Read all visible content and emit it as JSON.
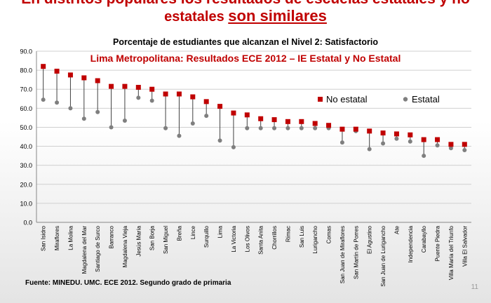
{
  "headline": {
    "line1": "En distritos populares los resultados de escuelas estatales y no",
    "line2_prefix": "estatales ",
    "line2_emph": "son similares"
  },
  "footer": {
    "source": "Fuente: MINEDU. UMC. ECE 2012. Segundo grado de primaria",
    "page_number": "11"
  },
  "colors": {
    "no_estatal": "#c00000",
    "estatal": "#7f7f7f",
    "title2": "#c00000"
  },
  "chart_data": {
    "type": "scatter",
    "title": "Porcentaje de estudiantes que alcanzan el Nivel 2: Satisfactorio",
    "subtitle": "Lima Metropolitana: Resultados ECE 2012 – IE Estatal y No Estatal",
    "xlabel": "",
    "ylabel": "",
    "ylim": [
      0,
      90
    ],
    "yticks": [
      "0.0",
      "10.0",
      "20.0",
      "30.0",
      "40.0",
      "50.0",
      "60.0",
      "70.0",
      "80.0",
      "90.0"
    ],
    "grid": true,
    "legend_position": "right",
    "categories": [
      "San Isidro",
      "Miraflores",
      "La Molina",
      "Magdalena del Mar",
      "Santiago de Surco",
      "Barranco",
      "Magdalena Vieja",
      "Jesús María",
      "San Borja",
      "San Miguel",
      "Breña",
      "Lince",
      "Surquillo",
      "Lima",
      "La Victoria",
      "Los Olivos",
      "Santa Anita",
      "Chorrillos",
      "Rímac",
      "San Luis",
      "Lurigancho",
      "Comas",
      "San Juan de Miraflores",
      "San Martín de Porres",
      "El Agustino",
      "San Juan de Lurigancho",
      "Ate",
      "Independencia",
      "Carabayllo",
      "Puente Piedra",
      "Villa María del Triunfo",
      "Villa El Salvador"
    ],
    "series": [
      {
        "name": "No estatal",
        "values": [
          82,
          79.5,
          77.5,
          76,
          74.5,
          71.5,
          71.5,
          71,
          70,
          67.5,
          67.5,
          66,
          63.5,
          61,
          57.5,
          56.5,
          54.5,
          54,
          53,
          53,
          52,
          51,
          49,
          49,
          48,
          47,
          46.5,
          46,
          43.5,
          43.5,
          41,
          41
        ]
      },
      {
        "name": "Estatal",
        "values": [
          64.5,
          63,
          60,
          54.5,
          58,
          50,
          53.5,
          65.5,
          64,
          49.5,
          45.5,
          52,
          56,
          43,
          39.5,
          49.5,
          49.5,
          49.5,
          49.5,
          49.5,
          49.5,
          49.5,
          42,
          48,
          38.5,
          41.5,
          44,
          42.5,
          35,
          40.5,
          39,
          38
        ]
      }
    ]
  }
}
